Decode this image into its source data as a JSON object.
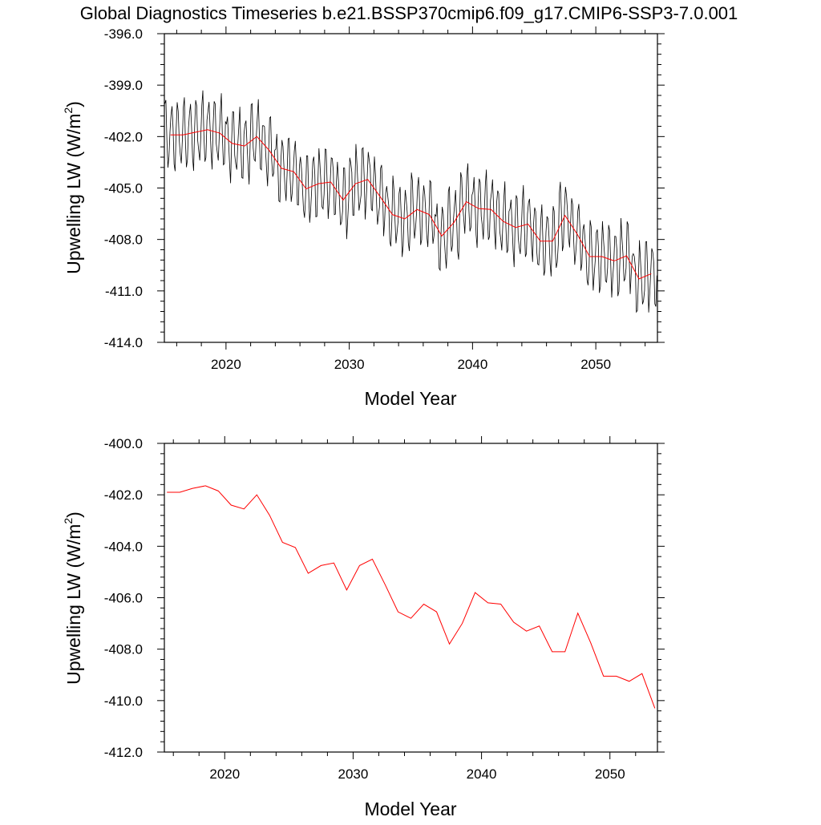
{
  "title": "Global Diagnostics Timeseries b.e21.BSSP370cmip6.f09_g17.CMIP6-SSP3-7.0.001",
  "colors": {
    "monthly": "#000000",
    "annual": "#ff0000",
    "axis": "#000000"
  },
  "chart_data": [
    {
      "type": "line",
      "xlabel": "Model Year",
      "ylabel_main": "Upwelling LW (W/m",
      "ylabel_sup": "2",
      "ylabel_close": ")",
      "xlim": [
        2015,
        2055
      ],
      "ylim": [
        -414,
        -396
      ],
      "x_ticks": [
        2020,
        2030,
        2040,
        2050
      ],
      "x_tick_labels": [
        "2020",
        "2030",
        "2040",
        "2050"
      ],
      "y_ticks": [
        -414,
        -411,
        -408,
        -405,
        -402,
        -399,
        -396
      ],
      "y_tick_labels": [
        "-414.0",
        "-411.0",
        "-408.0",
        "-405.0",
        "-402.0",
        "-399.0",
        "-396.0"
      ],
      "x_minor_step": 2,
      "y_minor_step": 0.6,
      "series": [
        {
          "kind": "monthly",
          "x_start": 2015.04,
          "x_step": 0.083333,
          "annual_mean": [
            -401.9,
            -401.9,
            -401.75,
            -401.6,
            -401.8,
            -402.4,
            -402.55,
            -402.0,
            -402.8,
            -403.85,
            -404.05,
            -405.05,
            -404.75,
            -404.65,
            -405.7,
            -404.75,
            -404.5,
            -405.5,
            -406.55,
            -406.8,
            -406.25,
            -406.55,
            -407.8,
            -407.0,
            -405.8,
            -406.2,
            -406.25,
            -406.95,
            -407.3,
            -407.1,
            -408.1,
            -408.1,
            -406.6,
            -407.7,
            -409.0,
            -409.0,
            -409.25,
            -408.95,
            -410.3,
            -410.0
          ],
          "seasonal_amplitude": 1.9
        },
        {
          "kind": "annual",
          "x": [
            2015.5,
            2016.5,
            2017.5,
            2018.5,
            2019.5,
            2020.5,
            2021.5,
            2022.5,
            2023.5,
            2024.5,
            2025.5,
            2026.5,
            2027.5,
            2028.5,
            2029.5,
            2030.5,
            2031.5,
            2032.5,
            2033.5,
            2034.5,
            2035.5,
            2036.5,
            2037.5,
            2038.5,
            2039.5,
            2040.5,
            2041.5,
            2042.5,
            2043.5,
            2044.5,
            2045.5,
            2046.5,
            2047.5,
            2048.5,
            2049.5,
            2050.5,
            2051.5,
            2052.5,
            2053.5,
            2054.5
          ],
          "y": [
            -401.9,
            -401.9,
            -401.75,
            -401.6,
            -401.8,
            -402.4,
            -402.55,
            -402.0,
            -402.8,
            -403.85,
            -404.05,
            -405.05,
            -404.75,
            -404.65,
            -405.7,
            -404.75,
            -404.5,
            -405.5,
            -406.55,
            -406.8,
            -406.25,
            -406.55,
            -407.8,
            -407.0,
            -405.8,
            -406.2,
            -406.25,
            -406.95,
            -407.3,
            -407.1,
            -408.1,
            -408.1,
            -406.6,
            -407.7,
            -409.0,
            -409.0,
            -409.25,
            -408.95,
            -410.3,
            -410.0
          ]
        }
      ]
    },
    {
      "type": "line",
      "xlabel": "Model Year",
      "ylabel_main": "Upwelling LW (W/m",
      "ylabel_sup": "2",
      "ylabel_close": ")",
      "xlim": [
        2015.3,
        2053.7
      ],
      "ylim": [
        -412,
        -400
      ],
      "x_ticks": [
        2020,
        2030,
        2040,
        2050
      ],
      "x_tick_labels": [
        "2020",
        "2030",
        "2040",
        "2050"
      ],
      "y_ticks": [
        -412,
        -410,
        -408,
        -406,
        -404,
        -402,
        -400
      ],
      "y_tick_labels": [
        "-412.0",
        "-410.0",
        "-408.0",
        "-406.0",
        "-404.0",
        "-402.0",
        "-400.0"
      ],
      "x_minor_step": 2,
      "y_minor_step": 0.4,
      "series": [
        {
          "kind": "annual",
          "x": [
            2015.5,
            2016.5,
            2017.5,
            2018.5,
            2019.5,
            2020.5,
            2021.5,
            2022.5,
            2023.5,
            2024.5,
            2025.5,
            2026.5,
            2027.5,
            2028.5,
            2029.5,
            2030.5,
            2031.5,
            2032.5,
            2033.5,
            2034.5,
            2035.5,
            2036.5,
            2037.5,
            2038.5,
            2039.5,
            2040.5,
            2041.5,
            2042.5,
            2043.5,
            2044.5,
            2045.5,
            2046.5,
            2047.5,
            2048.5,
            2049.5,
            2050.5,
            2051.5,
            2052.5,
            2053.5
          ],
          "y": [
            -401.9,
            -401.9,
            -401.75,
            -401.65,
            -401.85,
            -402.4,
            -402.55,
            -402.0,
            -402.8,
            -403.85,
            -404.05,
            -405.05,
            -404.75,
            -404.65,
            -405.7,
            -404.75,
            -404.5,
            -405.5,
            -406.55,
            -406.8,
            -406.25,
            -406.55,
            -407.8,
            -407.0,
            -405.8,
            -406.2,
            -406.25,
            -406.95,
            -407.3,
            -407.1,
            -408.1,
            -408.1,
            -406.6,
            -407.75,
            -409.05,
            -409.05,
            -409.25,
            -408.95,
            -410.3
          ]
        }
      ]
    }
  ]
}
